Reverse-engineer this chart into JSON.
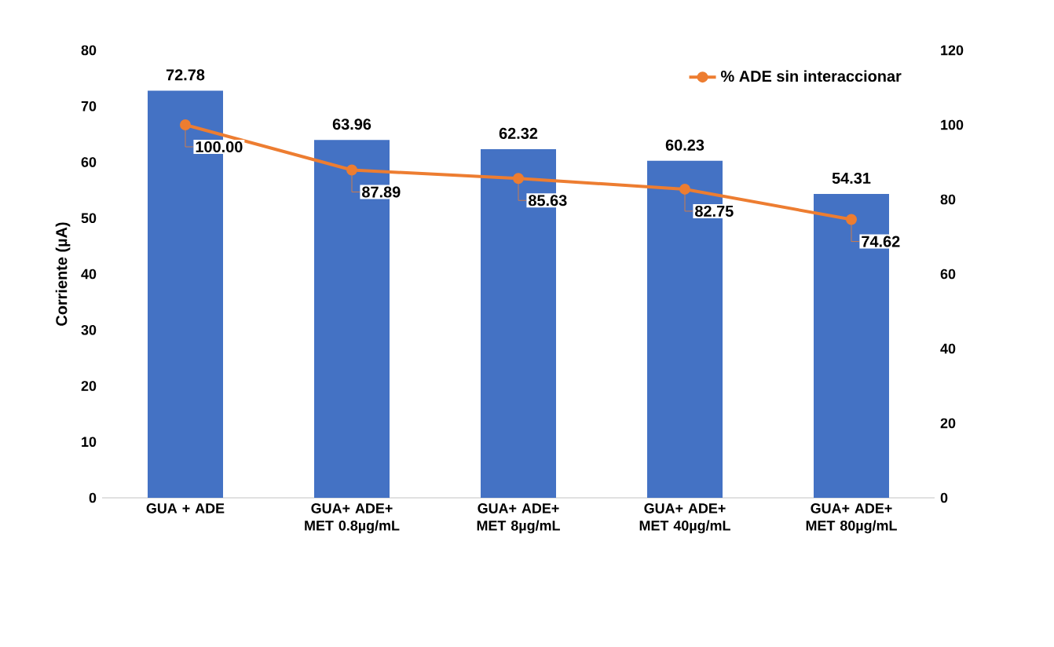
{
  "chart_data": {
    "type": "bar",
    "ylabel": "Corriente (µA)",
    "categories": [
      "GUA + ADE",
      "GUA+ ADE+ MET 0.8µg/mL",
      "GUA+ ADE+ MET 8µg/mL",
      "GUA+ ADE+ MET 40µg/mL",
      "GUA+ ADE+ MET 80µg/mL"
    ],
    "series": [
      {
        "type": "bar",
        "color": "#4472c4",
        "values": [
          72.78,
          63.96,
          62.32,
          60.23,
          54.31
        ],
        "value_labels": [
          "72.78",
          "63.96",
          "62.32",
          "60.23",
          "54.31"
        ]
      },
      {
        "type": "line",
        "name": "% ADE sin interaccionar",
        "axis": "y2",
        "color": "#ed7d31",
        "values": [
          100.0,
          87.89,
          85.63,
          82.75,
          74.62
        ],
        "value_labels": [
          "100.00",
          "87.89",
          "85.63",
          "82.75",
          "74.62"
        ]
      }
    ],
    "ylim": [
      0,
      80
    ],
    "yticks": [
      0,
      10,
      20,
      30,
      40,
      50,
      60,
      70,
      80
    ],
    "y2lim": [
      0,
      120
    ],
    "y2ticks": [
      0,
      20,
      40,
      60,
      80,
      100,
      120
    ],
    "marker": "circle",
    "legend": "top right"
  }
}
